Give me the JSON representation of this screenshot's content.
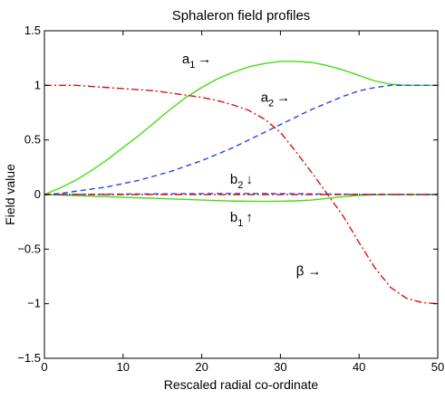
{
  "chart_data": {
    "type": "line",
    "title": "Sphaleron field profiles",
    "xlabel": "Rescaled radial co-ordinate",
    "ylabel": "Field value",
    "xlim": [
      0,
      50
    ],
    "ylim": [
      -1.5,
      1.5
    ],
    "x_ticks": [
      0,
      10,
      20,
      30,
      40,
      50
    ],
    "y_ticks": [
      1.5,
      1,
      0.5,
      0,
      -0.5,
      -1,
      -1.5
    ],
    "x_tick_labels": [
      "0",
      "10",
      "20",
      "30",
      "40",
      "50"
    ],
    "y_tick_labels": [
      "1.5",
      "1",
      "0.5",
      "0",
      "−0.5",
      "−1",
      "−1.5"
    ],
    "grid": false,
    "legend": "none",
    "series": [
      {
        "name": "a1",
        "color": "#44dd11",
        "style": "solid",
        "x": [
          0,
          2,
          4,
          6,
          8,
          10,
          12,
          14,
          16,
          18,
          20,
          22,
          24,
          26,
          28,
          30,
          32,
          34,
          36,
          38,
          40,
          42,
          44,
          46,
          48,
          50
        ],
        "y": [
          0.0,
          0.06,
          0.13,
          0.22,
          0.32,
          0.43,
          0.54,
          0.66,
          0.78,
          0.89,
          0.98,
          1.06,
          1.12,
          1.17,
          1.2,
          1.22,
          1.22,
          1.21,
          1.18,
          1.14,
          1.09,
          1.04,
          1.01,
          1.0,
          1.0,
          1.0
        ]
      },
      {
        "name": "a2",
        "color": "#2244ee",
        "style": "dashed",
        "x": [
          0,
          2,
          4,
          6,
          8,
          10,
          12,
          14,
          16,
          18,
          20,
          22,
          24,
          26,
          28,
          30,
          32,
          34,
          36,
          38,
          40,
          42,
          44,
          46,
          48,
          50
        ],
        "y": [
          0.0,
          0.01,
          0.03,
          0.05,
          0.07,
          0.1,
          0.13,
          0.17,
          0.21,
          0.26,
          0.31,
          0.37,
          0.43,
          0.5,
          0.57,
          0.64,
          0.71,
          0.78,
          0.84,
          0.9,
          0.95,
          0.98,
          1.0,
          1.0,
          1.0,
          1.0
        ]
      },
      {
        "name": "β",
        "color": "#dd1111",
        "style": "dashdot",
        "x": [
          0,
          2,
          4,
          6,
          8,
          10,
          12,
          14,
          16,
          18,
          20,
          22,
          24,
          26,
          28,
          30,
          32,
          34,
          36,
          38,
          40,
          42,
          44,
          46,
          48,
          50
        ],
        "y": [
          1.0,
          1.0,
          1.0,
          0.99,
          0.98,
          0.97,
          0.96,
          0.95,
          0.93,
          0.91,
          0.89,
          0.86,
          0.82,
          0.77,
          0.69,
          0.57,
          0.39,
          0.2,
          0.0,
          -0.2,
          -0.44,
          -0.67,
          -0.85,
          -0.95,
          -0.99,
          -1.0
        ]
      },
      {
        "name": "b1",
        "color": "#44dd11",
        "style": "solid",
        "x": [
          0,
          2,
          4,
          6,
          8,
          10,
          12,
          14,
          16,
          18,
          20,
          22,
          24,
          26,
          28,
          30,
          32,
          34,
          36,
          38,
          40,
          42,
          44,
          46,
          48,
          50
        ],
        "y": [
          0.0,
          -0.005,
          -0.01,
          -0.015,
          -0.02,
          -0.025,
          -0.03,
          -0.035,
          -0.04,
          -0.045,
          -0.05,
          -0.055,
          -0.06,
          -0.062,
          -0.063,
          -0.062,
          -0.058,
          -0.05,
          -0.035,
          -0.02,
          -0.008,
          -0.003,
          0.0,
          0.0,
          0.0,
          0.0
        ]
      },
      {
        "name": "b2",
        "color": "#2244ee",
        "style": "dashed",
        "x": [
          0,
          5,
          10,
          15,
          20,
          25,
          30,
          35,
          40,
          45,
          50
        ],
        "y": [
          0.0,
          0.002,
          0.004,
          0.006,
          0.008,
          0.009,
          0.008,
          0.005,
          0.002,
          0.0,
          0.0
        ]
      },
      {
        "name": "",
        "color": "#dd1111",
        "style": "dashdot",
        "x": [
          0,
          10,
          20,
          30,
          40,
          50
        ],
        "y": [
          0.0,
          0.0,
          0.0,
          0.0,
          0.0,
          0.0
        ]
      }
    ],
    "annotations": [
      {
        "base": "a",
        "sub": "1",
        "arrow": "→",
        "x": 17.5,
        "y": 1.2
      },
      {
        "base": "a",
        "sub": "2",
        "arrow": "→",
        "x": 27.5,
        "y": 0.85
      },
      {
        "base": "b",
        "sub": "2",
        "arrow": "↓",
        "x": 23.6,
        "y": 0.1
      },
      {
        "base": "b",
        "sub": "1",
        "arrow": "↑",
        "x": 23.6,
        "y": -0.25
      },
      {
        "base": "β",
        "sub": "",
        "arrow": "→",
        "x": 32.0,
        "y": -0.74
      }
    ]
  }
}
